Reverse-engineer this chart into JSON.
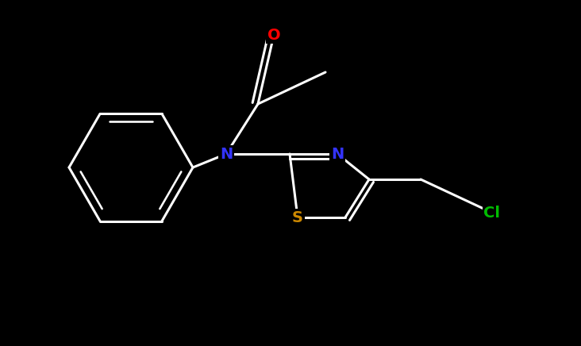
{
  "bg_color": "#000000",
  "bond_color": "#ffffff",
  "atom_colors": {
    "N": "#3333ff",
    "O": "#ff0000",
    "S": "#cc8800",
    "Cl": "#00bb00",
    "C": "#ffffff"
  },
  "figsize": [
    7.32,
    4.36
  ],
  "dpi": 100,
  "xlim": [
    0,
    7.32
  ],
  "ylim": [
    0,
    4.36
  ],
  "lw": 2.2,
  "fontsize": 14
}
